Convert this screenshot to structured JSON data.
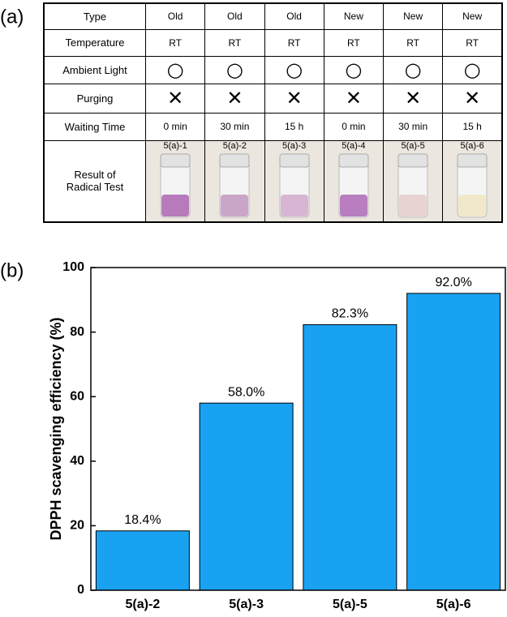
{
  "panel_labels": [
    "(a)",
    "(b)"
  ],
  "table": {
    "rows": [
      [
        "Type",
        "Old",
        "Old",
        "Old",
        "New",
        "New",
        "New"
      ],
      [
        "Temperature",
        "RT",
        "RT",
        "RT",
        "RT",
        "RT",
        "RT"
      ],
      [
        "Ambient Light",
        "○",
        "○",
        "○",
        "○",
        "○",
        "○"
      ],
      [
        "Purging",
        "✕",
        "✕",
        "✕",
        "✕",
        "✕",
        "✕"
      ],
      [
        "Waiting Time",
        "0 min",
        "30 min",
        "15 h",
        "0 min",
        "30 min",
        "15 h"
      ],
      [
        "Result of Radical Test",
        "5(a)-1",
        "5(a)-2",
        "5(a)-3",
        "5(a)-4",
        "5(a)-5",
        "5(a)-6"
      ]
    ]
  },
  "chart_data": {
    "type": "bar",
    "y_label": "DPPH scavenging efficiency (%)",
    "categories": [
      "5(a)-2",
      "5(a)-3",
      "5(a)-5",
      "5(a)-6"
    ],
    "values": [
      18.4,
      58.0,
      82.3,
      92.0
    ],
    "value_labels": [
      "18.4%",
      "58.0%",
      "82.3%",
      "92.0%"
    ],
    "color": "#1aa2f2",
    "ylim": [
      0,
      100
    ],
    "yticks": [
      0,
      20,
      40,
      60,
      80,
      100
    ]
  }
}
